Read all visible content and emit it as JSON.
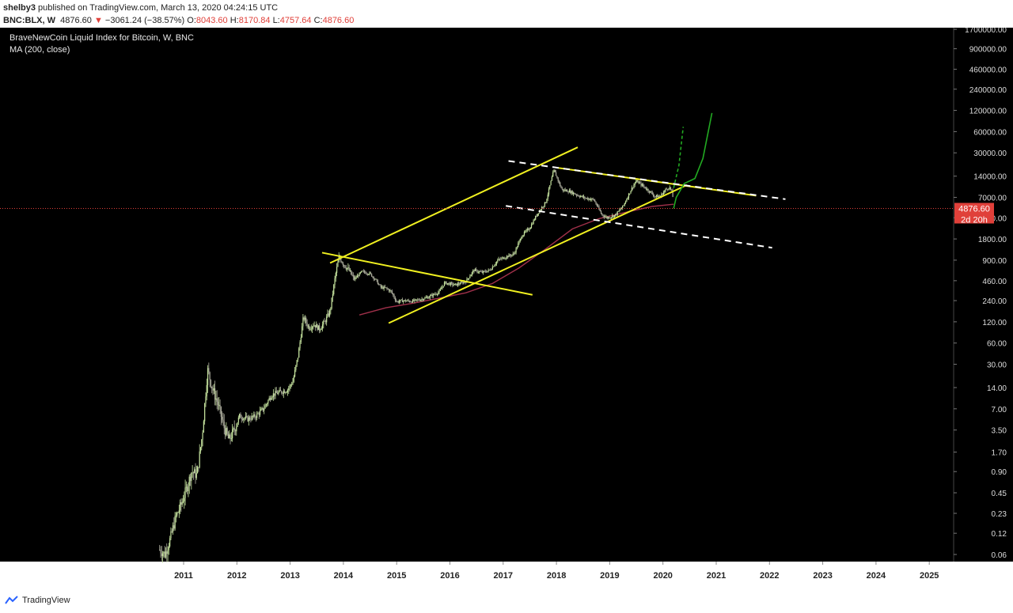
{
  "header": {
    "line1_user": "shelby3",
    "line1_text": "published on TradingView.com, March 13, 2020 04:24:15 UTC",
    "symbol": "BNC:BLX, W",
    "last": "4876.60",
    "change": "−3061.24 (−38.57%)",
    "o_label": "O:",
    "o_val": "8043.60",
    "h_label": "H:",
    "h_val": "8170.84",
    "l_label": "L:",
    "l_val": "4757.64",
    "c_label": "C:",
    "c_val": "4876.60"
  },
  "legend": {
    "title": "BraveNewCoin Liquid Index for Bitcoin, W, BNC",
    "indicator": "MA (200, close)"
  },
  "price_tag": {
    "value": "4876.60",
    "countdown": "2d 20h"
  },
  "footer": {
    "brand": "TradingView"
  },
  "colors": {
    "background": "#000000",
    "candle": "#c8e6a0",
    "ma": "#a0304a",
    "trend_yellow": "#f0f020",
    "trend_dashed": "#ffffff",
    "projection": "#22aa22",
    "price_line": "#e0403a"
  },
  "chart_data": {
    "type": "candlestick",
    "scale": "log",
    "title": "BraveNewCoin Liquid Index for Bitcoin, W, BNC",
    "x_ticks": [
      "2011",
      "2012",
      "2013",
      "2014",
      "2015",
      "2016",
      "2017",
      "2018",
      "2019",
      "2020",
      "2021",
      "2022",
      "2023",
      "2024",
      "2025"
    ],
    "y_ticks": [
      "1700000.00",
      "900000.00",
      "460000.00",
      "240000.00",
      "120000.00",
      "60000.00",
      "30000.00",
      "14000.00",
      "7000.00",
      "3600.00",
      "1800.00",
      "900.00",
      "460.00",
      "240.00",
      "120.00",
      "60.00",
      "30.00",
      "14.00",
      "7.00",
      "3.50",
      "1.70",
      "0.90",
      "0.45",
      "0.23",
      "0.12",
      "0.06"
    ],
    "xlim": [
      "2010-06",
      "2025-08"
    ],
    "ylim": [
      0.035,
      2000000
    ],
    "price_path": [
      [
        "2010.55",
        0.07
      ],
      [
        "2010.65",
        0.06
      ],
      [
        "2010.75",
        0.1
      ],
      [
        "2010.85",
        0.2
      ],
      [
        "2010.95",
        0.3
      ],
      [
        "2011.05",
        0.5
      ],
      [
        "2011.15",
        0.9
      ],
      [
        "2011.25",
        0.8
      ],
      [
        "2011.35",
        3
      ],
      [
        "2011.45",
        25
      ],
      [
        "2011.55",
        13
      ],
      [
        "2011.65",
        8
      ],
      [
        "2011.75",
        4
      ],
      [
        "2011.85",
        2.5
      ],
      [
        "2011.95",
        3.5
      ],
      [
        "2012.05",
        5.5
      ],
      [
        "2012.2",
        5
      ],
      [
        "2012.35",
        5.5
      ],
      [
        "2012.5",
        7
      ],
      [
        "2012.65",
        11
      ],
      [
        "2012.8",
        12
      ],
      [
        "2012.95",
        13
      ],
      [
        "2013.05",
        17
      ],
      [
        "2013.15",
        40
      ],
      [
        "2013.25",
        140
      ],
      [
        "2013.35",
        100
      ],
      [
        "2013.45",
        110
      ],
      [
        "2013.55",
        95
      ],
      [
        "2013.65",
        120
      ],
      [
        "2013.75",
        170
      ],
      [
        "2013.85",
        550
      ],
      [
        "2013.92",
        1000
      ],
      [
        "2014.0",
        800
      ],
      [
        "2014.1",
        650
      ],
      [
        "2014.2",
        480
      ],
      [
        "2014.35",
        620
      ],
      [
        "2014.5",
        580
      ],
      [
        "2014.6",
        480
      ],
      [
        "2014.7",
        370
      ],
      [
        "2014.8",
        360
      ],
      [
        "2014.9",
        320
      ],
      [
        "2015.0",
        230
      ],
      [
        "2015.1",
        240
      ],
      [
        "2015.3",
        235
      ],
      [
        "2015.45",
        250
      ],
      [
        "2015.6",
        270
      ],
      [
        "2015.8",
        320
      ],
      [
        "2015.9",
        430
      ],
      [
        "2016.1",
        400
      ],
      [
        "2016.3",
        450
      ],
      [
        "2016.45",
        650
      ],
      [
        "2016.6",
        600
      ],
      [
        "2016.75",
        650
      ],
      [
        "2016.9",
        900
      ],
      [
        "2017.05",
        1000
      ],
      [
        "2017.2",
        1100
      ],
      [
        "2017.35",
        2000
      ],
      [
        "2017.5",
        2600
      ],
      [
        "2017.65",
        4200
      ],
      [
        "2017.8",
        6000
      ],
      [
        "2017.95",
        17000
      ],
      [
        "2018.0",
        14000
      ],
      [
        "2018.1",
        9000
      ],
      [
        "2018.25",
        8500
      ],
      [
        "2018.4",
        7500
      ],
      [
        "2018.55",
        6800
      ],
      [
        "2018.7",
        6500
      ],
      [
        "2018.85",
        4000
      ],
      [
        "2018.95",
        3600
      ],
      [
        "2019.1",
        3900
      ],
      [
        "2019.25",
        5200
      ],
      [
        "2019.4",
        9000
      ],
      [
        "2019.5",
        12000
      ],
      [
        "2019.6",
        10500
      ],
      [
        "2019.75",
        8500
      ],
      [
        "2019.85",
        7200
      ],
      [
        "2019.95",
        7300
      ],
      [
        "2020.05",
        9000
      ],
      [
        "2020.12",
        9800
      ],
      [
        "2020.18",
        8000
      ],
      [
        "2020.2",
        4876.6
      ]
    ],
    "ma_path": [
      [
        "2014.3",
        150
      ],
      [
        "2014.8",
        190
      ],
      [
        "2015.3",
        220
      ],
      [
        "2015.8",
        260
      ],
      [
        "2016.3",
        310
      ],
      [
        "2016.8",
        420
      ],
      [
        "2017.3",
        700
      ],
      [
        "2017.8",
        1300
      ],
      [
        "2018.3",
        2500
      ],
      [
        "2018.8",
        3500
      ],
      [
        "2019.3",
        4300
      ],
      [
        "2019.8",
        5200
      ],
      [
        "2020.2",
        5600
      ]
    ],
    "trendlines": [
      {
        "style": "solid",
        "color": "yellow",
        "from": [
          "2013.75",
          820
        ],
        "to": [
          "2018.4",
          36000
        ]
      },
      {
        "style": "solid",
        "color": "yellow",
        "from": [
          "2013.6",
          1150
        ],
        "to": [
          "2017.55",
          290
        ]
      },
      {
        "style": "solid",
        "color": "yellow",
        "from": [
          "2014.85",
          115
        ],
        "to": [
          "2020.45",
          10500
        ]
      },
      {
        "style": "solid",
        "color": "yellow",
        "from": [
          "2018.0",
          18500
        ],
        "to": [
          "2021.75",
          7400
        ]
      },
      {
        "style": "dashed",
        "color": "white",
        "from": [
          "2017.1",
          23000
        ],
        "to": [
          "2022.3",
          6600
        ]
      },
      {
        "style": "dashed",
        "color": "white",
        "from": [
          "2017.05",
          5300
        ],
        "to": [
          "2022.05",
          1350
        ]
      }
    ],
    "projections": [
      {
        "style": "dashed",
        "points": [
          [
            "2020.2",
            9500
          ],
          [
            "2020.3",
            20000
          ],
          [
            "2020.38",
            70000
          ]
        ]
      },
      {
        "style": "solid",
        "points": [
          [
            "2020.2",
            4876.6
          ],
          [
            "2020.25",
            7000
          ],
          [
            "2020.4",
            11000
          ],
          [
            "2020.6",
            13000
          ],
          [
            "2020.75",
            25000
          ],
          [
            "2020.92",
            110000
          ]
        ]
      }
    ]
  }
}
